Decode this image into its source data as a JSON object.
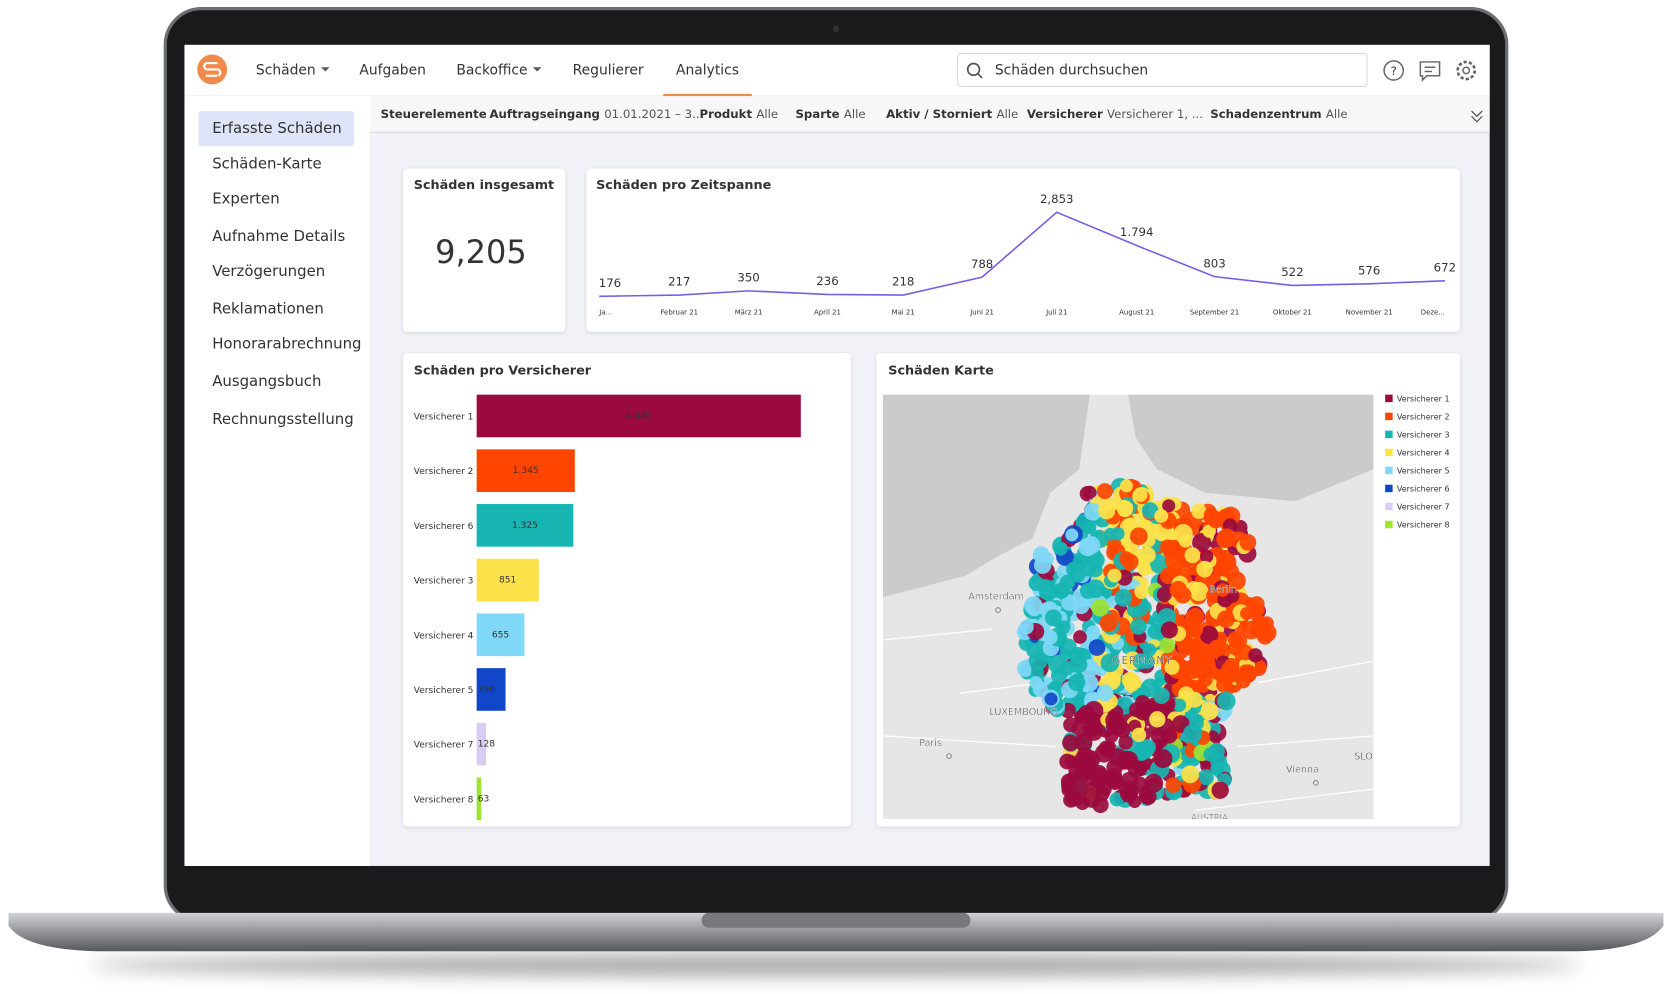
{
  "nav": {
    "items": [
      "Schäden",
      "Aufgaben",
      "Backoffice",
      "Regulierer",
      "Analytics"
    ],
    "search_placeholder": "Schäden durchsuchen"
  },
  "sidebar": [
    "Erfasste Schäden",
    "Schäden-Karte",
    "Experten",
    "Aufnahme Details",
    "Verzögerungen",
    "Reklamationen",
    "Honorarabrechnung",
    "Ausgangsbuch",
    "Rechnungsstellung"
  ],
  "filters": [
    {
      "label": "Steuerelemente"
    },
    {
      "label": "Auftragseingang",
      "value": "01.01.2021 – 3..."
    },
    {
      "label": "Produkt",
      "value": "Alle"
    },
    {
      "label": "Sparte",
      "value": "Alle"
    },
    {
      "label": "Aktiv / Storniert",
      "value": "Alle"
    },
    {
      "label": "Versicherer",
      "value": "Versicherer 1, ..."
    },
    {
      "label": "Schadenzentrum",
      "value": "Alle"
    }
  ],
  "kpi": {
    "title": "Schäden insgesamt",
    "value": {
      "value": 9205,
      "label": "9,205"
    }
  },
  "chart_data": [
    {
      "type": "line",
      "title": "Schäden pro Zeitspanne",
      "color": "#7b5ce6",
      "categories": [
        "Ja...",
        "Februar 21",
        "März 21",
        "April 21",
        "Mai 21",
        "Juni 21",
        "Juli 21",
        "August 21",
        "September 21",
        "Oktober 21",
        "November 21",
        "Deze..."
      ],
      "values": [
        176,
        217,
        350,
        236,
        218,
        788,
        2853,
        1794,
        803,
        522,
        576,
        672
      ],
      "value_labels": [
        "176",
        "217",
        "350",
        "236",
        "218",
        "788",
        "2,853",
        "1.794",
        "803",
        "522",
        "576",
        "672"
      ]
    },
    {
      "type": "hbar",
      "title": "Schäden pro Versicherer",
      "categories": [
        "Versicherer 1",
        "Versicherer 2",
        "Versicherer 6",
        "Versicherer 3",
        "Versicherer 4",
        "Versicherer 5",
        "Versicherer 7",
        "Versicherer 8"
      ],
      "values": [
        4442,
        1345,
        1325,
        851,
        655,
        396,
        128,
        63
      ],
      "value_labels": [
        "4.442",
        "1.345",
        "1.325",
        "851",
        "655",
        "396",
        "128",
        "63"
      ],
      "colors": [
        "#9b0a3e",
        "#ff4500",
        "#17b5b2",
        "#fce24a",
        "#7fd8f6",
        "#1246c8",
        "#d9ccf3",
        "#9ee232"
      ]
    }
  ],
  "map": {
    "title": "Schäden Karte",
    "legend": [
      {
        "name": "Versicherer 1",
        "color": "#9b0a3e"
      },
      {
        "name": "Versicherer 2",
        "color": "#ff4500"
      },
      {
        "name": "Versicherer 3",
        "color": "#17b5b2"
      },
      {
        "name": "Versicherer 4",
        "color": "#fce24a"
      },
      {
        "name": "Versicherer 5",
        "color": "#7fd8f6"
      },
      {
        "name": "Versicherer 6",
        "color": "#1246c8"
      },
      {
        "name": "Versicherer 7",
        "color": "#d9ccf3"
      },
      {
        "name": "Versicherer 8",
        "color": "#9ee232"
      }
    ],
    "labels": [
      "Amsterdam",
      "Berlin",
      "GERMANY",
      "LUXEMBOURG",
      "Paris",
      "Vienna",
      "AUSTRIA",
      "SLO"
    ]
  }
}
